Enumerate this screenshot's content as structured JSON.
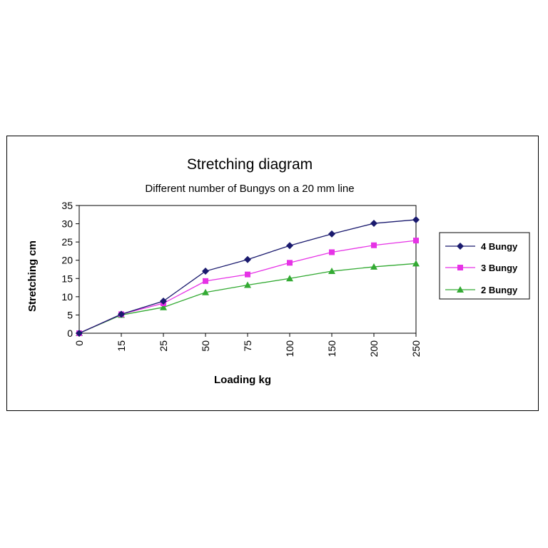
{
  "chart_data": {
    "type": "line",
    "title": "Stretching diagram",
    "subtitle": "Different number of Bungys on a 20 mm line",
    "xlabel": "Loading kg",
    "ylabel": "Stretching cm",
    "categories": [
      "0",
      "15",
      "25",
      "50",
      "75",
      "100",
      "150",
      "200",
      "250"
    ],
    "ylim": [
      0,
      35
    ],
    "yticks": [
      0,
      5,
      10,
      15,
      20,
      25,
      30,
      35
    ],
    "grid": false,
    "legend": "right",
    "series": [
      {
        "name": "4 Bungy",
        "color": "#1a1a6e",
        "marker": "diamond",
        "values": [
          0,
          5.2,
          8.8,
          17,
          20.2,
          24,
          27.2,
          30.1,
          31.1
        ]
      },
      {
        "name": "3 Bungy",
        "color": "#e633e6",
        "marker": "square",
        "values": [
          0,
          5.2,
          8.2,
          14.3,
          16.1,
          19.3,
          22.2,
          24.1,
          25.4
        ]
      },
      {
        "name": "2 Bungy",
        "color": "#33aa33",
        "marker": "triangle",
        "values": [
          0,
          5.0,
          7.1,
          11.2,
          13.2,
          15.0,
          17.0,
          18.2,
          19.1
        ]
      }
    ]
  }
}
